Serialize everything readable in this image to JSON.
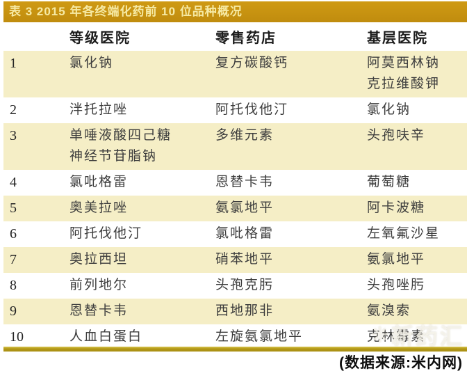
{
  "title": "表 3 2015 年各终端化药前 10 位品种概况",
  "colors": {
    "title_bar_gold": "#c8930f",
    "title_text": "#f6eaa4",
    "stripe_cream": "#f5eec6",
    "footer_rule_gold": "#b29716",
    "body_text": "#3d3d3d"
  },
  "table": {
    "headers": [
      "等级医院",
      "零售药店",
      "基层医院"
    ],
    "rows": [
      {
        "rank": "1",
        "hospital": "氯化钠",
        "pharmacy": "复方碳酸钙",
        "primary": "阿莫西林钠\n克拉维酸钾"
      },
      {
        "rank": "2",
        "hospital": "泮托拉唑",
        "pharmacy": "阿托伐他汀",
        "primary": "氯化钠"
      },
      {
        "rank": "3",
        "hospital": "单唾液酸四己糖\n神经节苷脂钠",
        "pharmacy": "多维元素",
        "primary": "头孢呋辛"
      },
      {
        "rank": "4",
        "hospital": "氯吡格雷",
        "pharmacy": "恩替卡韦",
        "primary": "葡萄糖"
      },
      {
        "rank": "5",
        "hospital": "奥美拉唑",
        "pharmacy": "氨氯地平",
        "primary": "阿卡波糖"
      },
      {
        "rank": "6",
        "hospital": "阿托伐他汀",
        "pharmacy": "氯吡格雷",
        "primary": "左氧氟沙星"
      },
      {
        "rank": "7",
        "hospital": "奥拉西坦",
        "pharmacy": "硝苯地平",
        "primary": "氨氯地平"
      },
      {
        "rank": "8",
        "hospital": "前列地尔",
        "pharmacy": "头孢克肟",
        "primary": "头孢唑肟"
      },
      {
        "rank": "9",
        "hospital": "恩替卡韦",
        "pharmacy": "西地那非",
        "primary": "氨溴索"
      },
      {
        "rank": "10",
        "hospital": "人血白蛋白",
        "pharmacy": "左旋氨氯地平",
        "primary": "克林霉素"
      }
    ]
  },
  "footer": {
    "source": "(数据来源:米内网)"
  },
  "watermark": {
    "logo": "❊",
    "text": "新药汇"
  }
}
